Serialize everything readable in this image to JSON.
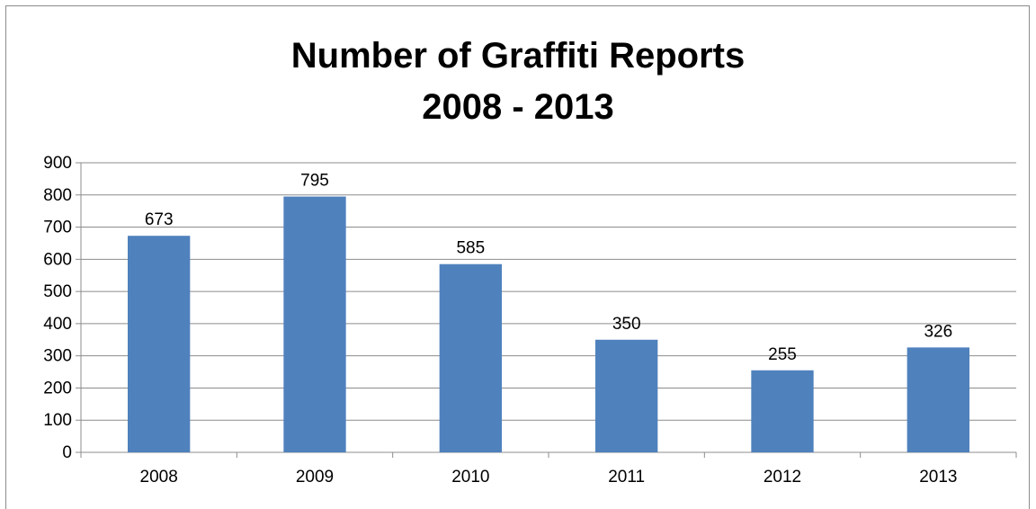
{
  "chart_data": {
    "type": "bar",
    "title_lines": [
      "Number of Graffiti Reports",
      "2008 - 2013"
    ],
    "categories": [
      "2008",
      "2009",
      "2010",
      "2011",
      "2012",
      "2013"
    ],
    "values": [
      673,
      795,
      585,
      350,
      255,
      326
    ],
    "data_labels": [
      "673",
      "795",
      "585",
      "350",
      "255",
      "326"
    ],
    "xlabel": "",
    "ylabel": "",
    "ylim": [
      0,
      900
    ],
    "yticks": [
      0,
      100,
      200,
      300,
      400,
      500,
      600,
      700,
      800,
      900
    ],
    "ytick_labels": [
      "0",
      "100",
      "200",
      "300",
      "400",
      "500",
      "600",
      "700",
      "800",
      "900"
    ],
    "grid": true,
    "legend": "none",
    "bar_color": "#4f81bd",
    "grid_color": "#8c8c8c"
  }
}
